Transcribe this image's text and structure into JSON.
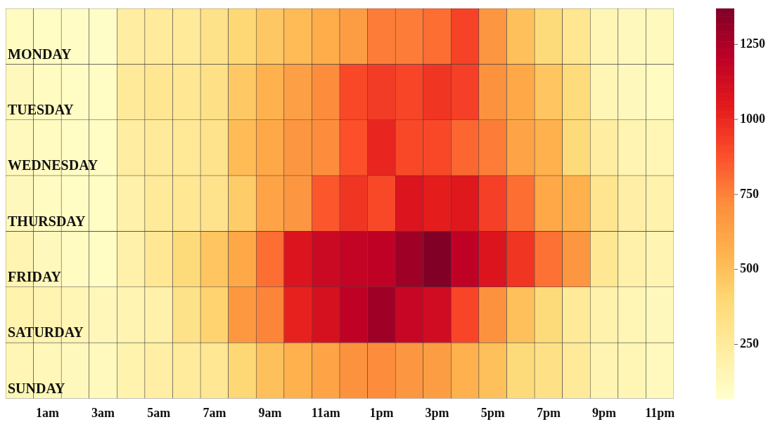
{
  "chart_data": {
    "type": "heatmap",
    "categories": [
      null,
      "1am",
      null,
      "3am",
      null,
      "5am",
      null,
      "7am",
      null,
      "9am",
      null,
      "11am",
      null,
      "1pm",
      null,
      "3pm",
      null,
      "5pm",
      null,
      "7pm",
      null,
      "9pm",
      null,
      "11pm"
    ],
    "y_categories": [
      "MONDAY",
      "TUESDAY",
      "WEDNESDAY",
      "THURSDAY",
      "FRIDAY",
      "SATURDAY",
      "SUNDAY"
    ],
    "cells": [
      [
        110,
        100,
        95,
        90,
        230,
        250,
        260,
        320,
        400,
        470,
        520,
        580,
        650,
        760,
        760,
        800,
        920,
        680,
        500,
        380,
        290,
        150,
        130,
        120
      ],
      [
        130,
        110,
        100,
        100,
        260,
        290,
        280,
        330,
        460,
        560,
        640,
        720,
        900,
        940,
        910,
        960,
        930,
        700,
        600,
        480,
        370,
        150,
        130,
        110
      ],
      [
        120,
        110,
        100,
        100,
        230,
        260,
        270,
        310,
        520,
        600,
        680,
        720,
        880,
        1010,
        900,
        900,
        820,
        760,
        620,
        560,
        380,
        230,
        170,
        150
      ],
      [
        130,
        110,
        100,
        100,
        200,
        260,
        280,
        310,
        450,
        620,
        680,
        860,
        960,
        900,
        1080,
        1040,
        1060,
        930,
        800,
        600,
        560,
        300,
        210,
        190
      ],
      [
        170,
        130,
        110,
        100,
        200,
        280,
        380,
        480,
        600,
        800,
        1080,
        1150,
        1180,
        1200,
        1290,
        1370,
        1200,
        1080,
        960,
        790,
        680,
        280,
        200,
        170
      ],
      [
        180,
        170,
        150,
        140,
        170,
        200,
        320,
        420,
        670,
        740,
        1020,
        1100,
        1200,
        1290,
        1170,
        1130,
        910,
        700,
        500,
        380,
        260,
        190,
        150,
        130
      ],
      [
        150,
        140,
        130,
        120,
        180,
        220,
        250,
        280,
        400,
        500,
        560,
        620,
        700,
        720,
        680,
        650,
        560,
        500,
        380,
        330,
        260,
        170,
        150,
        120
      ]
    ],
    "clim": [
      70,
      1370
    ],
    "cticks": [
      250,
      500,
      750,
      1000,
      1250
    ]
  }
}
